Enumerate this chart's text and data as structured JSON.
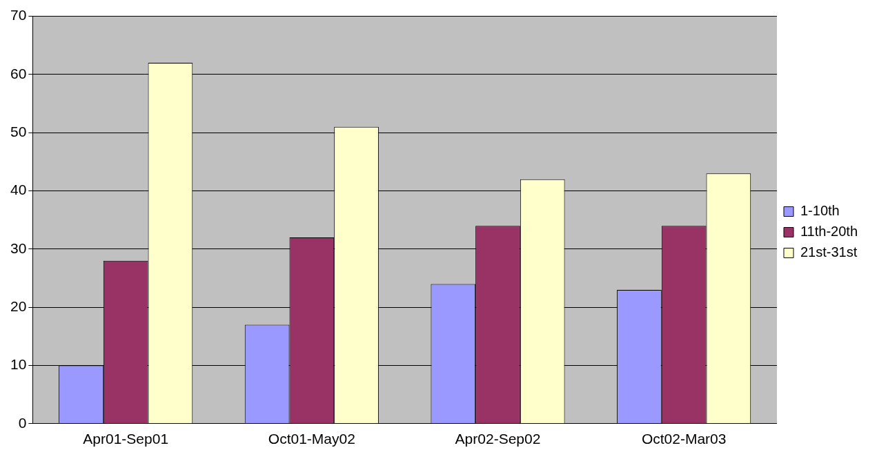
{
  "chart_data": {
    "type": "bar",
    "categories": [
      "Apr01-Sep01",
      "Oct01-May02",
      "Apr02-Sep02",
      "Oct02-Mar03"
    ],
    "series": [
      {
        "name": "1-10th",
        "color": "#9999ff",
        "values": [
          10,
          17,
          24,
          23
        ]
      },
      {
        "name": "11th-20th",
        "color": "#993366",
        "values": [
          28,
          32,
          34,
          34
        ]
      },
      {
        "name": "21st-31st",
        "color": "#ffffcc",
        "values": [
          62,
          51,
          42,
          43
        ]
      }
    ],
    "ylim": [
      0,
      70
    ],
    "yticks": [
      0,
      10,
      20,
      30,
      40,
      50,
      60,
      70
    ],
    "grid": "y",
    "legend": "right"
  }
}
